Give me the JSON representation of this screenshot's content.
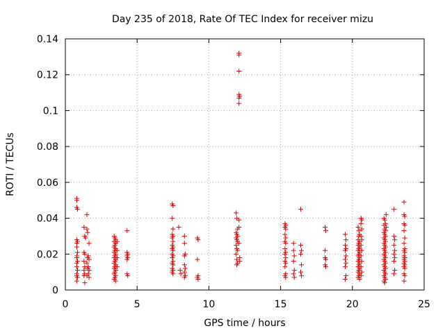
{
  "chart_data": {
    "type": "scatter",
    "title": "Day 235 of 2018, Rate Of TEC Index for receiver mizu",
    "xlabel": "GPS time / hours",
    "ylabel": "ROTI / TECUs",
    "xlim": [
      0,
      25
    ],
    "ylim": [
      0,
      0.14
    ],
    "x_ticks": [
      0,
      5,
      10,
      15,
      20,
      25
    ],
    "x_tick_labels": [
      "0",
      "5",
      "10",
      "15",
      "20",
      "25"
    ],
    "y_ticks": [
      0,
      0.02,
      0.04,
      0.06,
      0.08,
      0.1,
      0.12,
      0.14
    ],
    "y_tick_labels": [
      "0",
      "0.02",
      "0.04",
      "0.06",
      "0.08",
      "0.1",
      "0.12",
      "0.14"
    ],
    "grid": true,
    "marker": "+",
    "marker_color": "#e00000",
    "series": [
      {
        "name": "ROTI",
        "points": [
          [
            0.8,
            0.051
          ],
          [
            0.8,
            0.05
          ],
          [
            0.8,
            0.046
          ],
          [
            0.85,
            0.045
          ],
          [
            0.8,
            0.028
          ],
          [
            0.85,
            0.027
          ],
          [
            0.8,
            0.026
          ],
          [
            0.8,
            0.024
          ],
          [
            0.85,
            0.021
          ],
          [
            0.8,
            0.019
          ],
          [
            0.8,
            0.018
          ],
          [
            0.85,
            0.016
          ],
          [
            0.8,
            0.015
          ],
          [
            0.8,
            0.013
          ],
          [
            0.85,
            0.011
          ],
          [
            0.8,
            0.009
          ],
          [
            0.8,
            0.008
          ],
          [
            0.85,
            0.007
          ],
          [
            0.8,
            0.005
          ],
          [
            1.3,
            0.035
          ],
          [
            1.35,
            0.03
          ],
          [
            1.4,
            0.029
          ],
          [
            1.3,
            0.021
          ],
          [
            1.35,
            0.02
          ],
          [
            1.3,
            0.016
          ],
          [
            1.35,
            0.013
          ],
          [
            1.3,
            0.011
          ],
          [
            1.35,
            0.009
          ],
          [
            1.3,
            0.008
          ],
          [
            1.35,
            0.004
          ],
          [
            1.5,
            0.042
          ],
          [
            1.5,
            0.034
          ],
          [
            1.55,
            0.032
          ],
          [
            1.65,
            0.026
          ],
          [
            1.6,
            0.019
          ],
          [
            1.55,
            0.018
          ],
          [
            1.65,
            0.017
          ],
          [
            1.5,
            0.015
          ],
          [
            1.6,
            0.013
          ],
          [
            1.55,
            0.012
          ],
          [
            1.65,
            0.011
          ],
          [
            1.6,
            0.009
          ],
          [
            1.5,
            0.008
          ],
          [
            1.65,
            0.007
          ],
          [
            3.4,
            0.03
          ],
          [
            3.45,
            0.029
          ],
          [
            3.5,
            0.028
          ],
          [
            3.4,
            0.027
          ],
          [
            3.5,
            0.026
          ],
          [
            3.45,
            0.025
          ],
          [
            3.4,
            0.024
          ],
          [
            3.5,
            0.023
          ],
          [
            3.45,
            0.022
          ],
          [
            3.4,
            0.021
          ],
          [
            3.5,
            0.02
          ],
          [
            3.45,
            0.019
          ],
          [
            3.4,
            0.018
          ],
          [
            3.5,
            0.017
          ],
          [
            3.45,
            0.016
          ],
          [
            3.4,
            0.015
          ],
          [
            3.5,
            0.014
          ],
          [
            3.45,
            0.013
          ],
          [
            3.4,
            0.012
          ],
          [
            3.5,
            0.011
          ],
          [
            3.45,
            0.01
          ],
          [
            3.4,
            0.009
          ],
          [
            3.5,
            0.008
          ],
          [
            3.45,
            0.007
          ],
          [
            3.4,
            0.006
          ],
          [
            3.5,
            0.005
          ],
          [
            3.6,
            0.027
          ],
          [
            3.6,
            0.022
          ],
          [
            3.6,
            0.018
          ],
          [
            3.6,
            0.013
          ],
          [
            4.3,
            0.033
          ],
          [
            4.3,
            0.021
          ],
          [
            4.35,
            0.02
          ],
          [
            4.3,
            0.019
          ],
          [
            4.35,
            0.018
          ],
          [
            4.3,
            0.017
          ],
          [
            4.3,
            0.009
          ],
          [
            4.35,
            0.008
          ],
          [
            7.45,
            0.048
          ],
          [
            7.5,
            0.047
          ],
          [
            7.45,
            0.04
          ],
          [
            7.5,
            0.034
          ],
          [
            7.45,
            0.031
          ],
          [
            7.5,
            0.03
          ],
          [
            7.45,
            0.029
          ],
          [
            7.5,
            0.027
          ],
          [
            7.45,
            0.025
          ],
          [
            7.5,
            0.024
          ],
          [
            7.45,
            0.023
          ],
          [
            7.5,
            0.022
          ],
          [
            7.45,
            0.02
          ],
          [
            7.5,
            0.019
          ],
          [
            7.45,
            0.018
          ],
          [
            7.5,
            0.016
          ],
          [
            7.45,
            0.015
          ],
          [
            7.5,
            0.014
          ],
          [
            7.45,
            0.012
          ],
          [
            7.5,
            0.011
          ],
          [
            7.45,
            0.01
          ],
          [
            7.5,
            0.009
          ],
          [
            7.9,
            0.035
          ],
          [
            8.0,
            0.011
          ],
          [
            8.05,
            0.009
          ],
          [
            8.3,
            0.03
          ],
          [
            8.3,
            0.026
          ],
          [
            8.35,
            0.02
          ],
          [
            8.3,
            0.019
          ],
          [
            8.3,
            0.014
          ],
          [
            8.35,
            0.012
          ],
          [
            8.3,
            0.01
          ],
          [
            8.35,
            0.008
          ],
          [
            8.3,
            0.007
          ],
          [
            9.2,
            0.029
          ],
          [
            9.25,
            0.028
          ],
          [
            9.2,
            0.017
          ],
          [
            9.25,
            0.008
          ],
          [
            9.2,
            0.007
          ],
          [
            9.25,
            0.006
          ],
          [
            12.1,
            0.132
          ],
          [
            12.1,
            0.131
          ],
          [
            12.1,
            0.122
          ],
          [
            12.1,
            0.109
          ],
          [
            12.15,
            0.108
          ],
          [
            12.1,
            0.107
          ],
          [
            12.1,
            0.104
          ],
          [
            11.9,
            0.043
          ],
          [
            11.95,
            0.04
          ],
          [
            12.0,
            0.034
          ],
          [
            11.9,
            0.032
          ],
          [
            11.95,
            0.031
          ],
          [
            12.0,
            0.03
          ],
          [
            11.9,
            0.029
          ],
          [
            11.95,
            0.028
          ],
          [
            12.0,
            0.027
          ],
          [
            11.9,
            0.025
          ],
          [
            11.95,
            0.023
          ],
          [
            12.0,
            0.022
          ],
          [
            11.9,
            0.02
          ],
          [
            11.95,
            0.017
          ],
          [
            12.0,
            0.015
          ],
          [
            11.95,
            0.014
          ],
          [
            12.1,
            0.039
          ],
          [
            12.1,
            0.035
          ],
          [
            12.1,
            0.026
          ],
          [
            12.15,
            0.018
          ],
          [
            12.15,
            0.016
          ],
          [
            15.3,
            0.037
          ],
          [
            15.35,
            0.036
          ],
          [
            15.3,
            0.035
          ],
          [
            15.35,
            0.034
          ],
          [
            15.3,
            0.031
          ],
          [
            15.35,
            0.029
          ],
          [
            15.3,
            0.027
          ],
          [
            15.35,
            0.026
          ],
          [
            15.3,
            0.023
          ],
          [
            15.35,
            0.021
          ],
          [
            15.3,
            0.02
          ],
          [
            15.35,
            0.018
          ],
          [
            15.3,
            0.016
          ],
          [
            15.35,
            0.015
          ],
          [
            15.3,
            0.013
          ],
          [
            15.35,
            0.009
          ],
          [
            15.3,
            0.008
          ],
          [
            15.35,
            0.007
          ],
          [
            15.9,
            0.026
          ],
          [
            15.9,
            0.022
          ],
          [
            15.95,
            0.019
          ],
          [
            15.9,
            0.016
          ],
          [
            15.95,
            0.011
          ],
          [
            15.9,
            0.009
          ],
          [
            15.95,
            0.007
          ],
          [
            16.4,
            0.045
          ],
          [
            16.4,
            0.025
          ],
          [
            16.45,
            0.022
          ],
          [
            16.4,
            0.02
          ],
          [
            16.45,
            0.014
          ],
          [
            16.4,
            0.01
          ],
          [
            16.45,
            0.008
          ],
          [
            18.1,
            0.035
          ],
          [
            18.15,
            0.033
          ],
          [
            18.1,
            0.022
          ],
          [
            18.1,
            0.018
          ],
          [
            18.15,
            0.017
          ],
          [
            18.1,
            0.014
          ],
          [
            18.15,
            0.013
          ],
          [
            19.5,
            0.031
          ],
          [
            19.55,
            0.028
          ],
          [
            19.5,
            0.025
          ],
          [
            19.55,
            0.023
          ],
          [
            19.5,
            0.022
          ],
          [
            19.55,
            0.019
          ],
          [
            19.5,
            0.017
          ],
          [
            19.55,
            0.015
          ],
          [
            19.5,
            0.013
          ],
          [
            19.55,
            0.008
          ],
          [
            19.5,
            0.006
          ],
          [
            20.4,
            0.035
          ],
          [
            20.45,
            0.033
          ],
          [
            20.5,
            0.031
          ],
          [
            20.45,
            0.03
          ],
          [
            20.4,
            0.028
          ],
          [
            20.5,
            0.027
          ],
          [
            20.45,
            0.026
          ],
          [
            20.4,
            0.025
          ],
          [
            20.5,
            0.024
          ],
          [
            20.45,
            0.023
          ],
          [
            20.4,
            0.022
          ],
          [
            20.5,
            0.021
          ],
          [
            20.45,
            0.02
          ],
          [
            20.4,
            0.019
          ],
          [
            20.5,
            0.018
          ],
          [
            20.45,
            0.017
          ],
          [
            20.4,
            0.016
          ],
          [
            20.5,
            0.015
          ],
          [
            20.45,
            0.014
          ],
          [
            20.4,
            0.013
          ],
          [
            20.5,
            0.012
          ],
          [
            20.45,
            0.011
          ],
          [
            20.4,
            0.01
          ],
          [
            20.5,
            0.009
          ],
          [
            20.45,
            0.008
          ],
          [
            20.4,
            0.007
          ],
          [
            20.5,
            0.006
          ],
          [
            20.6,
            0.04
          ],
          [
            20.65,
            0.039
          ],
          [
            20.6,
            0.037
          ],
          [
            20.65,
            0.034
          ],
          [
            20.6,
            0.03
          ],
          [
            20.65,
            0.028
          ],
          [
            20.6,
            0.025
          ],
          [
            20.65,
            0.022
          ],
          [
            20.6,
            0.019
          ],
          [
            20.65,
            0.016
          ],
          [
            20.6,
            0.013
          ],
          [
            20.65,
            0.01
          ],
          [
            20.6,
            0.008
          ],
          [
            22.2,
            0.04
          ],
          [
            22.25,
            0.039
          ],
          [
            22.3,
            0.037
          ],
          [
            22.2,
            0.036
          ],
          [
            22.25,
            0.034
          ],
          [
            22.3,
            0.033
          ],
          [
            22.2,
            0.032
          ],
          [
            22.25,
            0.031
          ],
          [
            22.3,
            0.03
          ],
          [
            22.2,
            0.029
          ],
          [
            22.25,
            0.028
          ],
          [
            22.3,
            0.027
          ],
          [
            22.2,
            0.026
          ],
          [
            22.25,
            0.025
          ],
          [
            22.3,
            0.024
          ],
          [
            22.2,
            0.023
          ],
          [
            22.25,
            0.022
          ],
          [
            22.3,
            0.021
          ],
          [
            22.2,
            0.02
          ],
          [
            22.25,
            0.019
          ],
          [
            22.3,
            0.018
          ],
          [
            22.2,
            0.017
          ],
          [
            22.25,
            0.016
          ],
          [
            22.3,
            0.015
          ],
          [
            22.2,
            0.014
          ],
          [
            22.25,
            0.013
          ],
          [
            22.3,
            0.012
          ],
          [
            22.2,
            0.011
          ],
          [
            22.25,
            0.01
          ],
          [
            22.3,
            0.009
          ],
          [
            22.2,
            0.008
          ],
          [
            22.25,
            0.007
          ],
          [
            22.3,
            0.006
          ],
          [
            22.2,
            0.005
          ],
          [
            22.25,
            0.004
          ],
          [
            22.35,
            0.042
          ],
          [
            22.35,
            0.035
          ],
          [
            22.9,
            0.045
          ],
          [
            22.9,
            0.03
          ],
          [
            22.95,
            0.028
          ],
          [
            22.9,
            0.025
          ],
          [
            22.95,
            0.022
          ],
          [
            22.9,
            0.02
          ],
          [
            22.95,
            0.018
          ],
          [
            22.9,
            0.016
          ],
          [
            22.95,
            0.011
          ],
          [
            22.9,
            0.009
          ],
          [
            23.6,
            0.049
          ],
          [
            23.6,
            0.042
          ],
          [
            23.65,
            0.041
          ],
          [
            23.6,
            0.037
          ],
          [
            23.65,
            0.036
          ],
          [
            23.6,
            0.033
          ],
          [
            23.65,
            0.029
          ],
          [
            23.6,
            0.026
          ],
          [
            23.65,
            0.023
          ],
          [
            23.6,
            0.022
          ],
          [
            23.65,
            0.021
          ],
          [
            23.6,
            0.019
          ],
          [
            23.65,
            0.018
          ],
          [
            23.6,
            0.017
          ],
          [
            23.65,
            0.016
          ],
          [
            23.6,
            0.015
          ],
          [
            23.65,
            0.014
          ],
          [
            23.6,
            0.013
          ],
          [
            23.65,
            0.012
          ],
          [
            23.6,
            0.009
          ],
          [
            23.65,
            0.008
          ],
          [
            23.6,
            0.005
          ]
        ]
      }
    ]
  }
}
